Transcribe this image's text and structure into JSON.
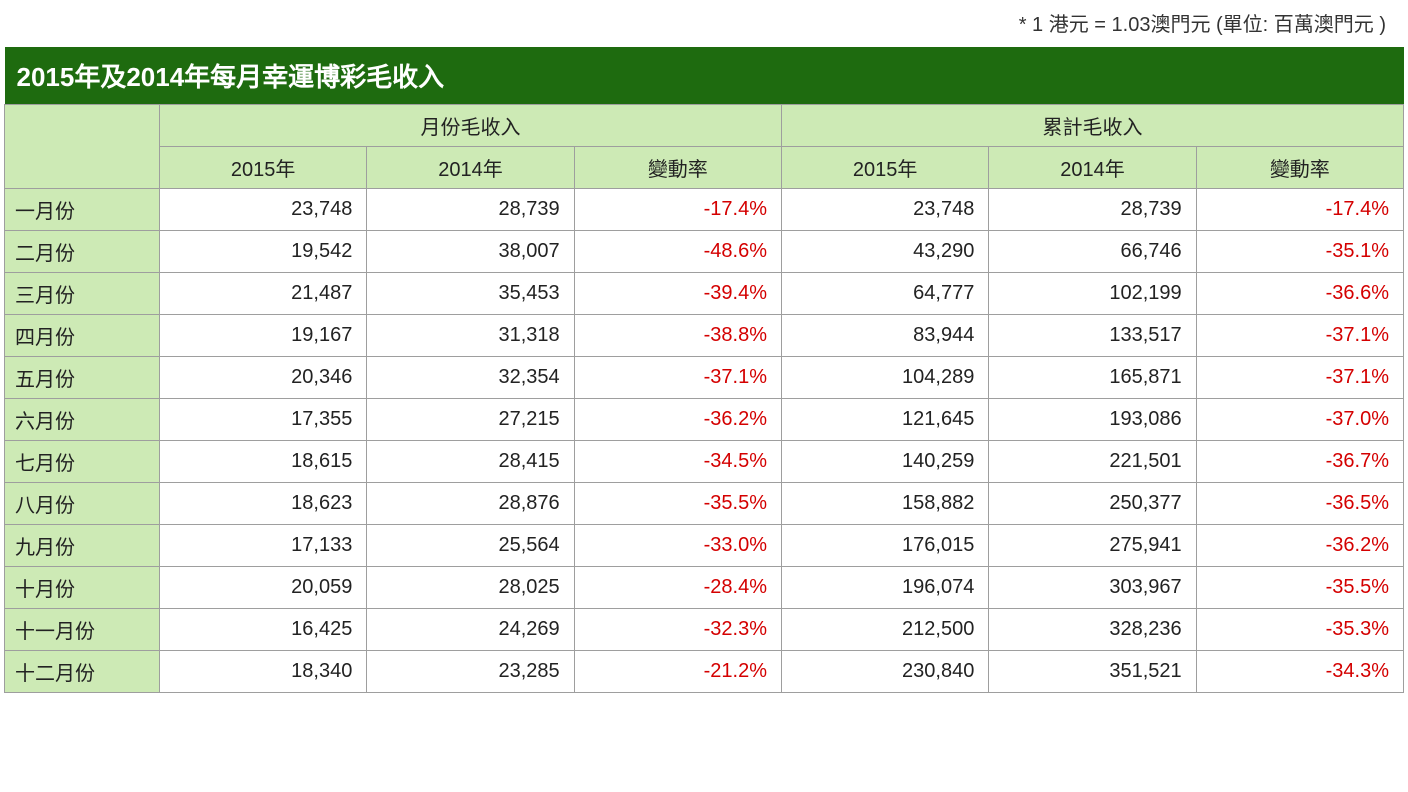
{
  "note": "* 1 港元 = 1.03澳門元 (單位: 百萬澳門元  )",
  "title": "2015年及2014年每月幸運博彩毛收入",
  "headers": {
    "group_monthly": "月份毛收入",
    "group_cumulative": "累計毛收入",
    "y2015": "2015年",
    "y2014": "2014年",
    "change": "變動率"
  },
  "colors": {
    "title_bg": "#1e6b0f",
    "title_fg": "#ffffff",
    "header_bg": "#cdeab5",
    "border": "#9e9e9e",
    "text": "#222222",
    "negative": "#d40000",
    "background": "#ffffff"
  },
  "font": {
    "title_size_pt": 20,
    "cell_size_pt": 15,
    "note_size_pt": 15
  },
  "columns": [
    "month",
    "m2015",
    "m2014",
    "m_change",
    "c2015",
    "c2014",
    "c_change"
  ],
  "rows": [
    {
      "month": "一月份",
      "m2015": "23,748",
      "m2014": "28,739",
      "m_change": "-17.4%",
      "c2015": "23,748",
      "c2014": "28,739",
      "c_change": "-17.4%"
    },
    {
      "month": "二月份",
      "m2015": "19,542",
      "m2014": "38,007",
      "m_change": "-48.6%",
      "c2015": "43,290",
      "c2014": "66,746",
      "c_change": "-35.1%"
    },
    {
      "month": "三月份",
      "m2015": "21,487",
      "m2014": "35,453",
      "m_change": "-39.4%",
      "c2015": "64,777",
      "c2014": "102,199",
      "c_change": "-36.6%"
    },
    {
      "month": "四月份",
      "m2015": "19,167",
      "m2014": "31,318",
      "m_change": "-38.8%",
      "c2015": "83,944",
      "c2014": "133,517",
      "c_change": "-37.1%"
    },
    {
      "month": "五月份",
      "m2015": "20,346",
      "m2014": "32,354",
      "m_change": "-37.1%",
      "c2015": "104,289",
      "c2014": "165,871",
      "c_change": "-37.1%"
    },
    {
      "month": "六月份",
      "m2015": "17,355",
      "m2014": "27,215",
      "m_change": "-36.2%",
      "c2015": "121,645",
      "c2014": "193,086",
      "c_change": "-37.0%"
    },
    {
      "month": "七月份",
      "m2015": "18,615",
      "m2014": "28,415",
      "m_change": "-34.5%",
      "c2015": "140,259",
      "c2014": "221,501",
      "c_change": "-36.7%"
    },
    {
      "month": "八月份",
      "m2015": "18,623",
      "m2014": "28,876",
      "m_change": "-35.5%",
      "c2015": "158,882",
      "c2014": "250,377",
      "c_change": "-36.5%"
    },
    {
      "month": "九月份",
      "m2015": "17,133",
      "m2014": "25,564",
      "m_change": "-33.0%",
      "c2015": "176,015",
      "c2014": "275,941",
      "c_change": "-36.2%"
    },
    {
      "month": "十月份",
      "m2015": "20,059",
      "m2014": "28,025",
      "m_change": "-28.4%",
      "c2015": "196,074",
      "c2014": "303,967",
      "c_change": "-35.5%"
    },
    {
      "month": "十一月份",
      "m2015": "16,425",
      "m2014": "24,269",
      "m_change": "-32.3%",
      "c2015": "212,500",
      "c2014": "328,236",
      "c_change": "-35.3%"
    },
    {
      "month": "十二月份",
      "m2015": "18,340",
      "m2014": "23,285",
      "m_change": "-21.2%",
      "c2015": "230,840",
      "c2014": "351,521",
      "c_change": "-34.3%"
    }
  ]
}
